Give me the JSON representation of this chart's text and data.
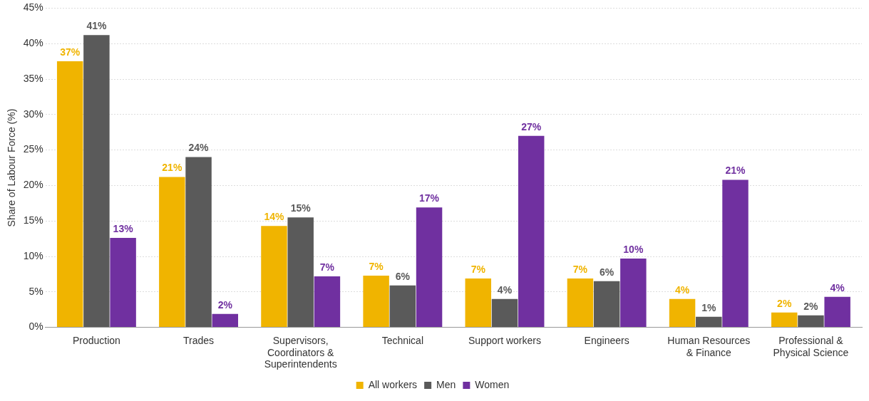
{
  "chart_data": {
    "type": "bar",
    "ylabel": "Share of Labour Force (%)",
    "categories": [
      "Production",
      "Trades",
      "Supervisors, Coordinators & Superintendents",
      "Technical",
      "Support workers",
      "Engineers",
      "Human Resources & Finance",
      "Professional & Physical Science"
    ],
    "series": [
      {
        "name": "All workers",
        "color": "#f0b400",
        "values": [
          37.5,
          21.2,
          14.3,
          7.3,
          6.9,
          6.9,
          4.0,
          2.1
        ],
        "value_labels": [
          "37%",
          "21%",
          "14%",
          "7%",
          "7%",
          "7%",
          "4%",
          "2%"
        ]
      },
      {
        "name": "Men",
        "color": "#5a5a5a",
        "values": [
          41.2,
          24.0,
          15.5,
          5.9,
          4.0,
          6.5,
          1.5,
          1.7
        ],
        "value_labels": [
          "41%",
          "24%",
          "15%",
          "6%",
          "4%",
          "6%",
          "1%",
          "2%"
        ]
      },
      {
        "name": "Women",
        "color": "#7030a0",
        "values": [
          12.6,
          1.9,
          7.2,
          16.9,
          27.0,
          9.7,
          20.8,
          4.3
        ],
        "value_labels": [
          "13%",
          "2%",
          "7%",
          "17%",
          "27%",
          "10%",
          "21%",
          "4%"
        ]
      }
    ],
    "ylim": [
      0,
      45
    ],
    "yticks": [
      {
        "value": 0,
        "label": "0%"
      },
      {
        "value": 5,
        "label": "5%"
      },
      {
        "value": 10,
        "label": "10%"
      },
      {
        "value": 15,
        "label": "15%"
      },
      {
        "value": 20,
        "label": "20%"
      },
      {
        "value": 25,
        "label": "25%"
      },
      {
        "value": 30,
        "label": "30%"
      },
      {
        "value": 35,
        "label": "35%"
      },
      {
        "value": 40,
        "label": "40%"
      },
      {
        "value": 45,
        "label": "45%"
      }
    ],
    "grid": "y",
    "legend": "bottom"
  }
}
